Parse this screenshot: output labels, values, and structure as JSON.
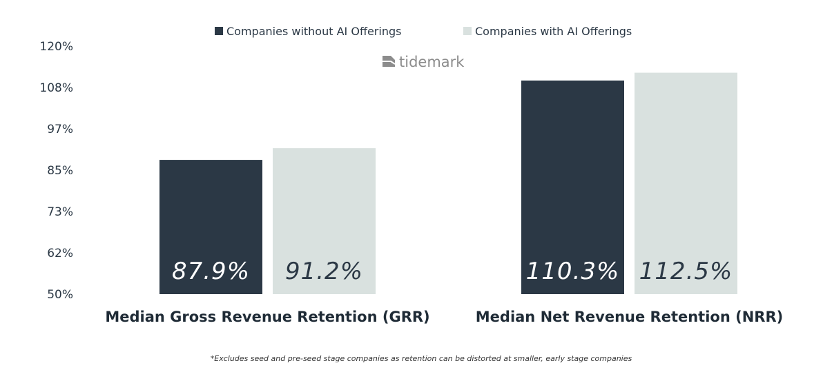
{
  "chart_data": {
    "type": "bar",
    "categories": [
      "Median Gross Revenue Retention (GRR)",
      "Median Net Revenue Retention (NRR)"
    ],
    "series": [
      {
        "name": "Companies without AI Offerings",
        "values": [
          87.9,
          110.3
        ],
        "labels": [
          "87.9%",
          "110.3%"
        ],
        "color": "#2b3845"
      },
      {
        "name": "Companies with AI Offerings",
        "values": [
          91.2,
          112.5
        ],
        "labels": [
          "91.2%",
          "112.5%"
        ],
        "color": "#d9e1df"
      }
    ],
    "yticks": [
      "120%",
      "108%",
      "97%",
      "85%",
      "73%",
      "62%",
      "50%"
    ],
    "ylim": [
      50,
      120
    ],
    "legend_position": "top-center",
    "grid": false
  },
  "logo": {
    "text": "tidemark"
  },
  "footnote": "*Excludes seed and pre-seed stage companies as retention can be distorted at smaller, early stage companies"
}
